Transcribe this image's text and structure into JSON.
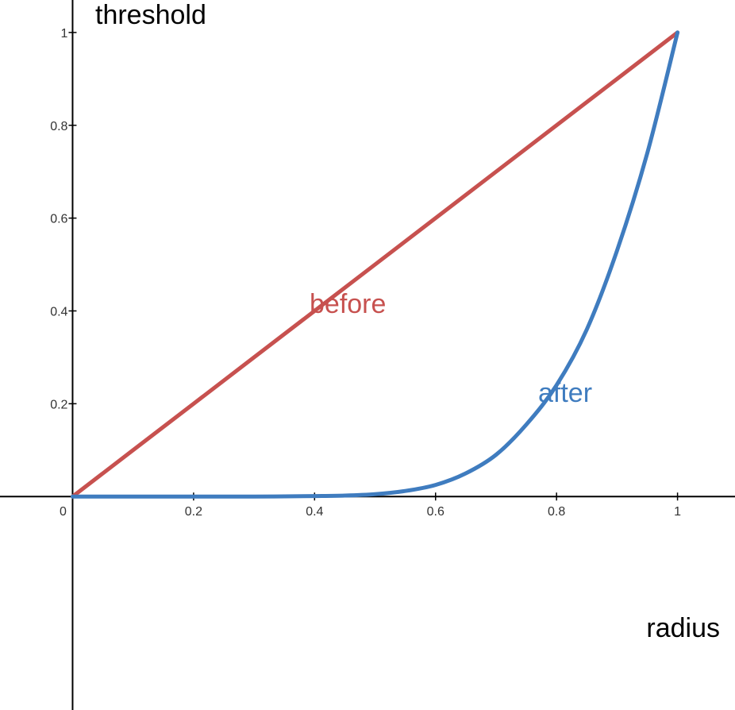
{
  "chart_data": {
    "type": "line",
    "xlabel": "radius",
    "ylabel": "threshold",
    "xlim": [
      -0.12,
      1.095
    ],
    "ylim": [
      -0.46,
      1.07
    ],
    "x_ticks": [
      0,
      0.2,
      0.4,
      0.6,
      0.8,
      1
    ],
    "x_tick_labels": [
      "0",
      "0.2",
      "0.4",
      "0.6",
      "0.8",
      "1"
    ],
    "y_ticks": [
      0.2,
      0.4,
      0.6,
      0.8,
      1
    ],
    "y_tick_labels": [
      "0.2",
      "0.4",
      "0.6",
      "0.8",
      "1"
    ],
    "grid": false,
    "series": [
      {
        "name": "before",
        "color": "#c7514f",
        "x": [
          0,
          0.1,
          0.2,
          0.3,
          0.4,
          0.5,
          0.6,
          0.7,
          0.8,
          0.9,
          1
        ],
        "y": [
          0,
          0.1,
          0.2,
          0.3,
          0.4,
          0.5,
          0.6,
          0.7,
          0.8,
          0.9,
          1
        ]
      },
      {
        "name": "after",
        "color": "#3f7cbf",
        "x": [
          0,
          0.1,
          0.2,
          0.3,
          0.4,
          0.45,
          0.5,
          0.55,
          0.6,
          0.65,
          0.7,
          0.75,
          0.8,
          0.85,
          0.9,
          0.95,
          1
        ],
        "y": [
          0,
          0,
          0,
          0,
          0.001,
          0.002,
          0.005,
          0.012,
          0.025,
          0.05,
          0.09,
          0.155,
          0.24,
          0.36,
          0.53,
          0.74,
          1
        ]
      }
    ]
  }
}
